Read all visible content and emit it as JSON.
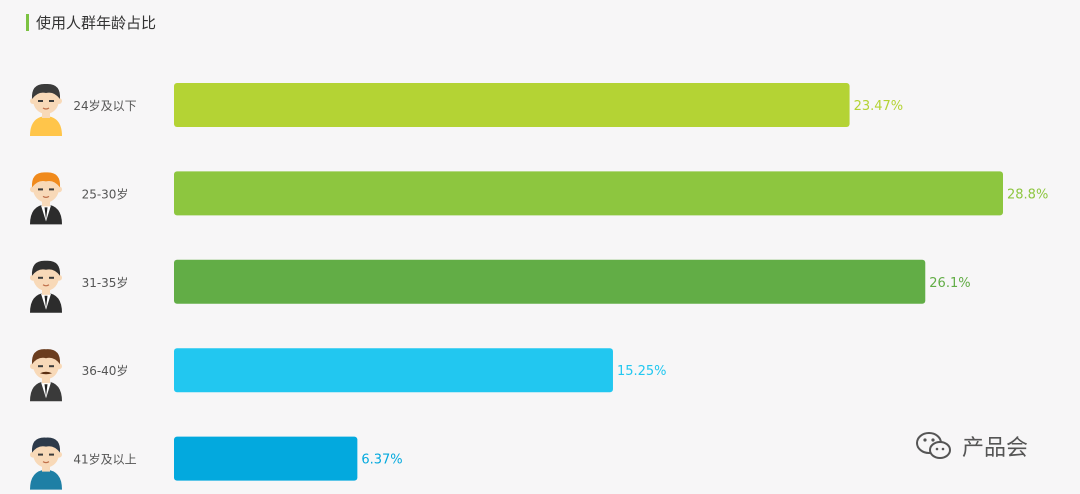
{
  "header": {
    "title": "使用人群年龄占比",
    "accent_color": "#7cc242"
  },
  "watermark": {
    "text": "产品会",
    "icon": "wechat-icon"
  },
  "chart_data": {
    "type": "bar",
    "orientation": "horizontal",
    "title": "使用人群年龄占比",
    "categories": [
      "24岁及以下",
      "25-30岁",
      "31-35岁",
      "36-40岁",
      "41岁及以上"
    ],
    "values": [
      23.47,
      28.8,
      26.1,
      15.25,
      6.37
    ],
    "value_labels": [
      "23.47%",
      "28.8%",
      "26.1%",
      "15.25%",
      "6.37%"
    ],
    "unit": "%",
    "xlim": [
      0,
      28.8
    ],
    "colors": [
      "#b4d334",
      "#8dc63f",
      "#62ad46",
      "#22c7f0",
      "#03a9de"
    ],
    "avatars": [
      "young-boy-icon",
      "redhead-man-icon",
      "suit-man-icon",
      "mustache-man-icon",
      "older-man-icon"
    ],
    "grid": false,
    "legend": "none"
  }
}
